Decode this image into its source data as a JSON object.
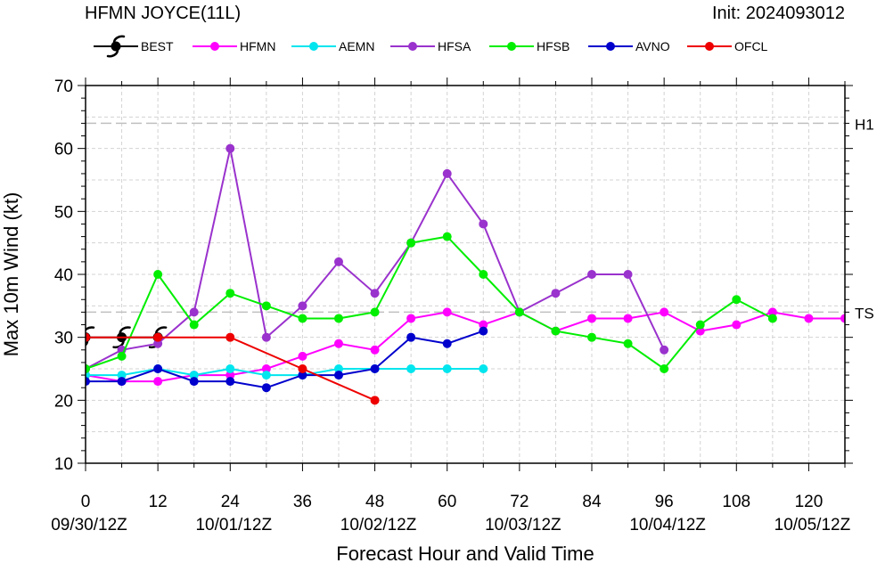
{
  "chart_data": {
    "type": "line",
    "title": "HFMN JOYCE(11L)",
    "init_label": "Init: 2024093012",
    "xlabel": "Forecast Hour and Valid Time",
    "ylabel": "Max 10m Wind (kt)",
    "xlim": [
      0,
      126
    ],
    "ylim": [
      10,
      70
    ],
    "x_ticks": [
      0,
      12,
      24,
      36,
      48,
      60,
      72,
      84,
      96,
      108,
      120
    ],
    "x_tick_labels": [
      "0",
      "12",
      "24",
      "36",
      "48",
      "60",
      "72",
      "84",
      "96",
      "108",
      "120"
    ],
    "date_ticks": [
      {
        "x": 0,
        "label": "09/30/12Z"
      },
      {
        "x": 24,
        "label": "10/01/12Z"
      },
      {
        "x": 48,
        "label": "10/02/12Z"
      },
      {
        "x": 72,
        "label": "10/03/12Z"
      },
      {
        "x": 96,
        "label": "10/04/12Z"
      },
      {
        "x": 120,
        "label": "10/05/12Z"
      }
    ],
    "y_ticks": [
      10,
      20,
      30,
      40,
      50,
      60,
      70
    ],
    "grid": true,
    "reference_lines": [
      {
        "label": "H1",
        "y": 64
      },
      {
        "label": "TS",
        "y": 34
      }
    ],
    "legend_position": "top",
    "series": [
      {
        "name": "BEST",
        "color": "#000000",
        "marker": "hurricane-symbol",
        "x": [
          0,
          6,
          12
        ],
        "y": [
          30,
          30,
          30
        ]
      },
      {
        "name": "HFMN",
        "color": "#ff00ff",
        "marker": "circle",
        "x": [
          0,
          6,
          12,
          18,
          24,
          30,
          36,
          42,
          48,
          54,
          60,
          66,
          72,
          78,
          84,
          90,
          96,
          102,
          108,
          114,
          120,
          126
        ],
        "y": [
          24,
          23,
          23,
          24,
          24,
          25,
          27,
          29,
          28,
          33,
          34,
          32,
          34,
          31,
          33,
          33,
          34,
          31,
          32,
          34,
          33,
          33
        ]
      },
      {
        "name": "AEMN",
        "color": "#00e5ee",
        "marker": "circle",
        "x": [
          0,
          6,
          12,
          18,
          24,
          30,
          36,
          42,
          48,
          54,
          60,
          66
        ],
        "y": [
          24,
          24,
          25,
          24,
          25,
          24,
          24,
          25,
          25,
          25,
          25,
          25
        ]
      },
      {
        "name": "HFSA",
        "color": "#9a32cd",
        "marker": "circle",
        "x": [
          0,
          6,
          12,
          18,
          24,
          30,
          36,
          42,
          48,
          54,
          60,
          66,
          72,
          78,
          84,
          90,
          96
        ],
        "y": [
          25,
          28,
          29,
          34,
          60,
          30,
          35,
          42,
          37,
          45,
          56,
          48,
          34,
          37,
          40,
          40,
          28
        ]
      },
      {
        "name": "HFSB",
        "color": "#00ee00",
        "marker": "circle",
        "x": [
          0,
          6,
          12,
          18,
          24,
          30,
          36,
          42,
          48,
          54,
          60,
          66,
          72,
          78,
          84,
          90,
          96,
          102,
          108,
          114
        ],
        "y": [
          25,
          27,
          40,
          32,
          37,
          35,
          33,
          33,
          34,
          45,
          46,
          40,
          34,
          31,
          30,
          29,
          25,
          32,
          36,
          33
        ]
      },
      {
        "name": "AVNO",
        "color": "#0000cd",
        "marker": "circle",
        "x": [
          0,
          6,
          12,
          18,
          24,
          30,
          36,
          42,
          48,
          54,
          60,
          66
        ],
        "y": [
          23,
          23,
          25,
          23,
          23,
          22,
          24,
          24,
          25,
          30,
          29,
          31
        ]
      },
      {
        "name": "OFCL",
        "color": "#ee0000",
        "marker": "circle",
        "x": [
          0,
          12,
          24,
          36,
          48
        ],
        "y": [
          30,
          30,
          30,
          25,
          20
        ]
      }
    ]
  }
}
